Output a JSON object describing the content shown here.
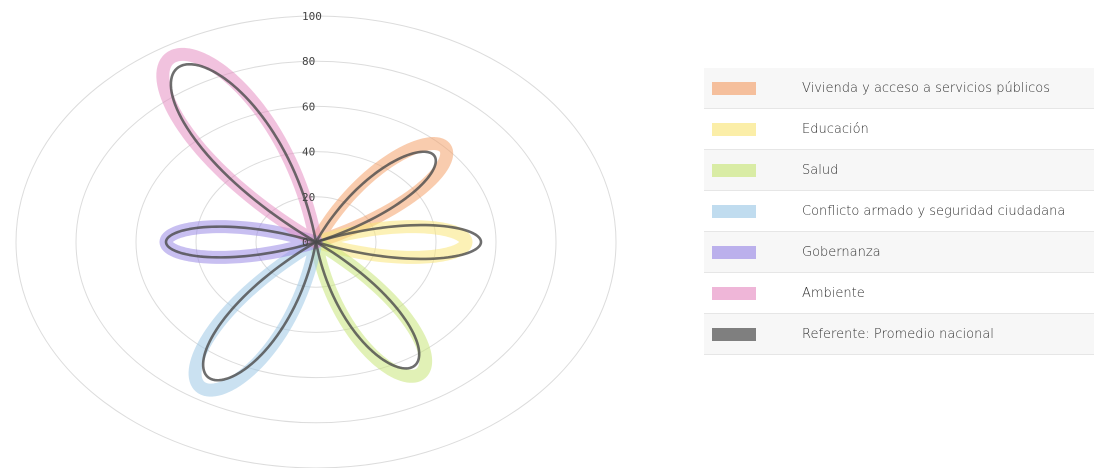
{
  "chart_data": {
    "type": "polar-petal",
    "radial_axis": {
      "min": 0,
      "max": 100,
      "ticks": [
        0,
        20,
        40,
        60,
        80,
        100
      ],
      "tick_labels": [
        "0",
        "20",
        "40",
        "60",
        "80",
        "100"
      ]
    },
    "grid": true,
    "legend_position": "right",
    "series": [
      {
        "name": "Vivienda y acceso a servicios públicos",
        "color": "#f4a26b",
        "angle_deg": 45,
        "value": 60,
        "reference_value": 55
      },
      {
        "name": "Educación",
        "color": "#f9e57a",
        "angle_deg": 0,
        "value": 50,
        "reference_value": 55
      },
      {
        "name": "Salud",
        "color": "#c9e67a",
        "angle_deg": 300,
        "value": 68,
        "reference_value": 64
      },
      {
        "name": "Conflicto armado y seguridad ciudadana",
        "color": "#9ec9e6",
        "angle_deg": 240,
        "value": 75,
        "reference_value": 70
      },
      {
        "name": "Gobernanza",
        "color": "#9b8be6",
        "angle_deg": 180,
        "value": 50,
        "reference_value": 50
      },
      {
        "name": "Ambiente",
        "color": "#e68fc3",
        "angle_deg": 120,
        "value": 95,
        "reference_value": 90
      }
    ],
    "reference": {
      "name": "Referente: Promedio nacional",
      "color": "#7f7f7f"
    }
  }
}
